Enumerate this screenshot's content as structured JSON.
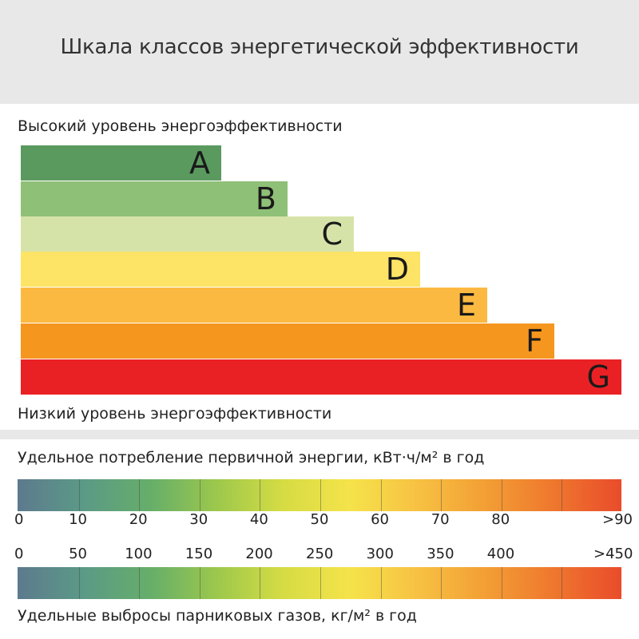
{
  "title": "Шкала классов энергетической эффективности",
  "high_label": "Высокий уровень энергоэффективности",
  "low_label": "Низкий уровень энергоэффективности",
  "classes": [
    {
      "letter": "A",
      "color": "#5b9a5f"
    },
    {
      "letter": "B",
      "color": "#8fc077"
    },
    {
      "letter": "C",
      "color": "#d6e3a8"
    },
    {
      "letter": "D",
      "color": "#fde466"
    },
    {
      "letter": "E",
      "color": "#fcb941"
    },
    {
      "letter": "F",
      "color": "#f5961e"
    },
    {
      "letter": "G",
      "color": "#ea2124"
    }
  ],
  "energy_scale": {
    "label": "Удельное потребление первичной энергии, кВт·ч/м² в год",
    "ticks": [
      "0",
      "10",
      "20",
      "30",
      "40",
      "50",
      "60",
      "70",
      "80",
      ">90"
    ]
  },
  "emissions_scale": {
    "label": "Удельные выбросы парниковых газов, кг/м² в год",
    "ticks": [
      "0",
      "50",
      "100",
      "150",
      "200",
      "250",
      "300",
      "350",
      "400",
      ">450"
    ]
  }
}
